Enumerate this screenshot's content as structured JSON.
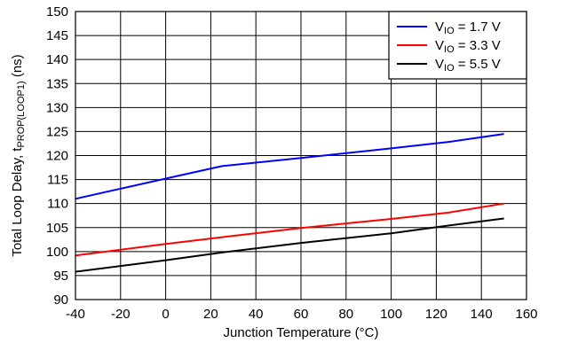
{
  "chart_data": {
    "type": "line",
    "xlabel": "Junction Temperature (°C)",
    "ylabel": {
      "main": "Total Loop Delay, t",
      "sub": "PROP(LOOP1)",
      "suffix": " (ns)"
    },
    "xlim": [
      -40,
      160
    ],
    "ylim": [
      90,
      150
    ],
    "xticks": [
      -40,
      -20,
      0,
      20,
      40,
      60,
      80,
      100,
      120,
      140,
      160
    ],
    "yticks": [
      90,
      95,
      100,
      105,
      110,
      115,
      120,
      125,
      130,
      135,
      140,
      145,
      150
    ],
    "grid": true,
    "legend_position": "top-right",
    "series": [
      {
        "name": "V",
        "name_sub": "IO",
        "name_suffix": " = 1.7 V",
        "color": "#0000ff",
        "x": [
          -40,
          0,
          25,
          60,
          100,
          125,
          150
        ],
        "values": [
          111,
          115.2,
          117.8,
          119.5,
          121.5,
          122.8,
          124.5
        ]
      },
      {
        "name": "V",
        "name_sub": "IO",
        "name_suffix": " = 3.3 V",
        "color": "#ff0000",
        "x": [
          -40,
          0,
          25,
          60,
          100,
          125,
          150
        ],
        "values": [
          99.2,
          101.6,
          103,
          104.9,
          106.8,
          108.1,
          110
        ]
      },
      {
        "name": "V",
        "name_sub": "IO",
        "name_suffix": " = 5.5 V",
        "color": "#000000",
        "x": [
          -40,
          0,
          25,
          60,
          100,
          125,
          150
        ],
        "values": [
          95.8,
          98.2,
          99.8,
          101.8,
          103.8,
          105.4,
          106.9
        ]
      }
    ]
  }
}
